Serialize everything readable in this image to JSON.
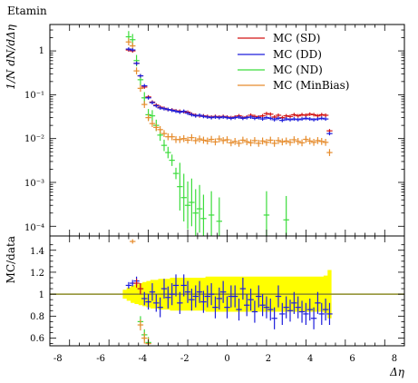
{
  "header": {
    "title": "Etamin"
  },
  "chart_data": [
    {
      "type": "scatter",
      "title": "Etamin",
      "ylabel": "1/N dN/dΔη",
      "yscale": "log",
      "xlim": [
        -9,
        9
      ],
      "ylim": [
        6e-05,
        4
      ],
      "y_tick_labels": [
        "10⁻⁴",
        "10⁻³",
        "10⁻²",
        "10⁻¹",
        "1"
      ],
      "legend_position": "top-right",
      "series": [
        {
          "name": "MC (SD)",
          "color": "#d21414",
          "x": [
            -5.0,
            -4.8,
            -4.6,
            -4.4,
            -4.2,
            -4.0,
            -3.8,
            -3.6,
            -3.4,
            -3.2,
            -3.0,
            -2.8,
            -2.6,
            -2.4,
            -2.2,
            -2.0,
            -1.8,
            -1.6,
            -1.4,
            -1.2,
            -1.0,
            -0.8,
            -0.6,
            -0.4,
            -0.2,
            0.0,
            0.2,
            0.4,
            0.6,
            0.8,
            1.0,
            1.2,
            1.4,
            1.6,
            1.8,
            2.0,
            2.2,
            2.4,
            2.6,
            2.8,
            3.0,
            3.2,
            3.4,
            3.6,
            3.8,
            4.0,
            4.2,
            4.4,
            4.6,
            4.8,
            5.0,
            5.2
          ],
          "y": [
            1.05,
            1.0,
            0.52,
            0.27,
            0.15,
            0.089,
            0.068,
            0.058,
            0.052,
            0.049,
            0.046,
            0.045,
            0.043,
            0.042,
            0.041,
            0.04,
            0.036,
            0.034,
            0.033,
            0.033,
            0.032,
            0.031,
            0.032,
            0.031,
            0.032,
            0.031,
            0.03,
            0.031,
            0.033,
            0.03,
            0.031,
            0.034,
            0.032,
            0.031,
            0.033,
            0.037,
            0.036,
            0.031,
            0.034,
            0.03,
            0.033,
            0.032,
            0.035,
            0.033,
            0.035,
            0.034,
            0.036,
            0.035,
            0.033,
            0.035,
            0.034,
            0.015
          ]
        },
        {
          "name": "MC (DD)",
          "color": "#1e1edc",
          "x": [
            -5.0,
            -4.8,
            -4.6,
            -4.4,
            -4.2,
            -4.0,
            -3.8,
            -3.6,
            -3.4,
            -3.2,
            -3.0,
            -2.8,
            -2.6,
            -2.4,
            -2.2,
            -2.0,
            -1.8,
            -1.6,
            -1.4,
            -1.2,
            -1.0,
            -0.8,
            -0.6,
            -0.4,
            -0.2,
            0.0,
            0.2,
            0.4,
            0.6,
            0.8,
            1.0,
            1.2,
            1.4,
            1.6,
            1.8,
            2.0,
            2.2,
            2.4,
            2.6,
            2.8,
            3.0,
            3.2,
            3.4,
            3.6,
            3.8,
            4.0,
            4.2,
            4.4,
            4.6,
            4.8,
            5.0,
            5.2
          ],
          "y": [
            1.1,
            1.05,
            0.52,
            0.27,
            0.16,
            0.085,
            0.066,
            0.056,
            0.05,
            0.048,
            0.046,
            0.044,
            0.042,
            0.04,
            0.042,
            0.038,
            0.035,
            0.033,
            0.034,
            0.032,
            0.031,
            0.03,
            0.031,
            0.03,
            0.031,
            0.03,
            0.029,
            0.03,
            0.031,
            0.029,
            0.03,
            0.031,
            0.029,
            0.03,
            0.028,
            0.03,
            0.029,
            0.027,
            0.029,
            0.026,
            0.028,
            0.027,
            0.028,
            0.027,
            0.028,
            0.029,
            0.028,
            0.027,
            0.028,
            0.029,
            0.028,
            0.013
          ]
        },
        {
          "name": "MC (ND)",
          "color": "#3cdc3c",
          "x": [
            -5.0,
            -4.8,
            -4.6,
            -4.4,
            -4.2,
            -4.0,
            -3.8,
            -3.6,
            -3.4,
            -3.2,
            -3.0,
            -2.8,
            -2.6,
            -2.4,
            -2.2,
            -2.0,
            -1.8,
            -1.6,
            -1.4,
            -1.2,
            -0.8,
            -0.4,
            2.0,
            3.0
          ],
          "y": [
            2.1,
            1.8,
            0.6,
            0.22,
            0.085,
            0.035,
            0.033,
            0.02,
            0.012,
            0.007,
            0.0048,
            0.0032,
            0.0016,
            0.0008,
            0.00045,
            0.0003,
            0.00035,
            0.0002,
            0.00025,
            0.00015,
            0.00018,
            0.00013,
            0.00018,
            0.00014
          ]
        },
        {
          "name": "MC (MinBias)",
          "color": "#e68c2d",
          "x": [
            -5.0,
            -4.8,
            -4.6,
            -4.4,
            -4.2,
            -4.0,
            -3.8,
            -3.6,
            -3.4,
            -3.2,
            -3.0,
            -2.8,
            -2.6,
            -2.4,
            -2.2,
            -2.0,
            -1.8,
            -1.6,
            -1.4,
            -1.2,
            -1.0,
            -0.8,
            -0.6,
            -0.4,
            -0.2,
            0.0,
            0.2,
            0.4,
            0.6,
            0.8,
            1.0,
            1.2,
            1.4,
            1.6,
            1.8,
            2.0,
            2.2,
            2.4,
            2.6,
            2.8,
            3.0,
            3.2,
            3.4,
            3.6,
            3.8,
            4.0,
            4.2,
            4.4,
            4.6,
            4.8,
            5.0,
            5.2
          ],
          "y": [
            1.6,
            1.3,
            0.35,
            0.14,
            0.06,
            0.03,
            0.022,
            0.018,
            0.016,
            0.013,
            0.011,
            0.011,
            0.0095,
            0.0095,
            0.01,
            0.0092,
            0.0105,
            0.009,
            0.0098,
            0.0092,
            0.0088,
            0.0096,
            0.0084,
            0.0098,
            0.009,
            0.0094,
            0.008,
            0.0086,
            0.0078,
            0.0092,
            0.0085,
            0.008,
            0.009,
            0.0078,
            0.0088,
            0.0082,
            0.0092,
            0.0078,
            0.009,
            0.0084,
            0.0088,
            0.0082,
            0.0094,
            0.0086,
            0.008,
            0.0096,
            0.0088,
            0.0082,
            0.009,
            0.0086,
            0.0082,
            0.0048
          ]
        }
      ]
    },
    {
      "type": "scatter",
      "xlabel": "Δη",
      "ylabel": "MC/data",
      "xlim": [
        -9,
        9
      ],
      "ylim": [
        0.53,
        1.53
      ],
      "x_tick_labels": [
        "-8",
        "-6",
        "-4",
        "-2",
        "0",
        "2",
        "4",
        "6",
        "8"
      ],
      "y_tick_labels": [
        "0.6",
        "0.8",
        "1",
        "1.2",
        "1.4"
      ],
      "band": {
        "color": "#ffff00",
        "x": [
          -5.2,
          -5.0,
          -4.8,
          -4.6,
          -4.4,
          -4.2,
          -4.0,
          -3.8,
          -3.6,
          -3.4,
          -3.2,
          -3.0,
          -2.8,
          -2.6,
          -2.4,
          -2.2,
          -2.0,
          -1.8,
          -1.6,
          -1.4,
          -1.2,
          -1.0,
          -0.8,
          -0.6,
          -0.4,
          -0.2,
          0.0,
          0.2,
          0.4,
          0.6,
          0.8,
          1.0,
          1.2,
          1.4,
          1.6,
          1.8,
          2.0,
          2.2,
          2.4,
          2.6,
          2.8,
          3.0,
          3.2,
          3.4,
          3.6,
          3.8,
          4.0,
          4.2,
          4.4,
          4.6,
          4.8,
          5.0,
          5.2
        ],
        "half_width": [
          0.04,
          0.06,
          0.08,
          0.09,
          0.1,
          0.11,
          0.12,
          0.13,
          0.13,
          0.14,
          0.14,
          0.14,
          0.15,
          0.15,
          0.15,
          0.15,
          0.15,
          0.15,
          0.15,
          0.15,
          0.15,
          0.16,
          0.16,
          0.16,
          0.16,
          0.16,
          0.16,
          0.16,
          0.16,
          0.16,
          0.16,
          0.16,
          0.16,
          0.16,
          0.16,
          0.16,
          0.16,
          0.16,
          0.16,
          0.16,
          0.16,
          0.16,
          0.16,
          0.16,
          0.16,
          0.16,
          0.16,
          0.16,
          0.16,
          0.16,
          0.16,
          0.17,
          0.22
        ]
      },
      "reference_line": {
        "y": 1,
        "color": "#8c8c28"
      },
      "series": [
        {
          "name": "MC (DD)",
          "color": "#1e1edc",
          "x": [
            -5.0,
            -4.8,
            -4.6,
            -4.4,
            -4.2,
            -4.0,
            -3.8,
            -3.6,
            -3.4,
            -3.2,
            -3.0,
            -2.8,
            -2.6,
            -2.4,
            -2.2,
            -2.0,
            -1.8,
            -1.6,
            -1.4,
            -1.2,
            -1.0,
            -0.8,
            -0.6,
            -0.4,
            -0.2,
            0.0,
            0.2,
            0.4,
            0.6,
            0.8,
            1.0,
            1.2,
            1.4,
            1.6,
            1.8,
            2.0,
            2.2,
            2.4,
            2.6,
            2.8,
            3.0,
            3.2,
            3.4,
            3.6,
            3.8,
            4.0,
            4.2,
            4.4,
            4.6,
            4.8,
            5.0,
            5.2
          ],
          "y": [
            1.08,
            1.1,
            1.12,
            1.05,
            0.96,
            0.93,
            1.02,
            0.92,
            0.88,
            1.05,
            0.97,
            1.0,
            1.08,
            0.92,
            1.08,
            1.02,
            0.95,
            0.98,
            1.02,
            0.93,
            0.98,
            1.0,
            0.88,
            0.96,
            1.02,
            0.88,
            0.98,
            0.98,
            0.86,
            1.05,
            0.9,
            0.95,
            0.84,
            0.98,
            0.9,
            0.88,
            0.86,
            0.78,
            0.98,
            0.82,
            0.88,
            0.85,
            0.92,
            0.88,
            0.84,
            0.82,
            0.86,
            0.78,
            0.92,
            0.82,
            0.86,
            0.82
          ],
          "err": [
            0.03,
            0.03,
            0.04,
            0.05,
            0.06,
            0.07,
            0.08,
            0.08,
            0.09,
            0.09,
            0.1,
            0.1,
            0.1,
            0.1,
            0.1,
            0.1,
            0.1,
            0.1,
            0.1,
            0.1,
            0.1,
            0.1,
            0.1,
            0.1,
            0.1,
            0.1,
            0.1,
            0.1,
            0.1,
            0.1,
            0.1,
            0.1,
            0.1,
            0.1,
            0.1,
            0.1,
            0.1,
            0.1,
            0.1,
            0.1,
            0.1,
            0.1,
            0.1,
            0.1,
            0.1,
            0.1,
            0.1,
            0.1,
            0.1,
            0.1,
            0.1,
            0.1
          ]
        },
        {
          "name": "MC (SD)",
          "color": "#d21414",
          "x": [
            -4.6,
            -4.4
          ],
          "y": [
            1.1,
            1.05
          ],
          "err": [
            0.04,
            0.05
          ]
        },
        {
          "name": "MC (ND)",
          "color": "#3cdc3c",
          "x": [
            -4.4,
            -4.2,
            -4.0
          ],
          "y": [
            0.75,
            0.63,
            0.56
          ],
          "err": [
            0.05,
            0.05,
            0.05
          ]
        },
        {
          "name": "MC (MinBias)",
          "color": "#e68c2d",
          "x": [
            -4.8,
            -4.4,
            -4.2,
            -4.0
          ],
          "y": [
            1.48,
            0.72,
            0.6,
            0.55
          ],
          "err": [
            0.02,
            0.05,
            0.05,
            0.05
          ]
        }
      ]
    }
  ]
}
